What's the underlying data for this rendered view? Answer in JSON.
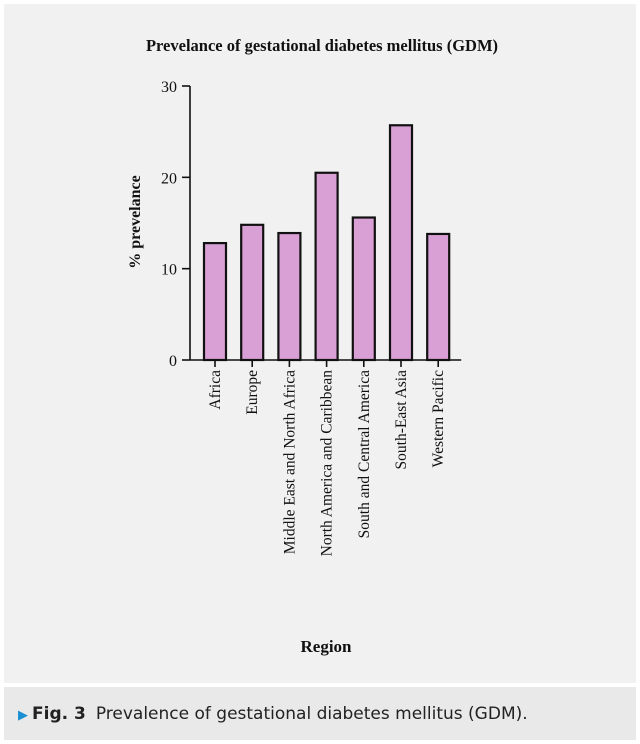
{
  "chart_data": {
    "type": "bar",
    "title": "Prevelance of gestational diabetes mellitus (GDM)",
    "xlabel": "Region",
    "ylabel": "% prevelance",
    "categories": [
      "Africa",
      "Europe",
      "Middle East and North Africa",
      "North America and Caribbean",
      "South and Central America",
      "South-East Asia",
      "Western Pacific"
    ],
    "values": [
      12.8,
      14.8,
      13.9,
      20.5,
      15.6,
      25.7,
      13.8
    ],
    "ylim": [
      0,
      30
    ],
    "yticks": [
      0,
      10,
      20,
      30
    ],
    "bar_color": "#d9a0d6",
    "edge_color": "#111111",
    "grid": false
  },
  "caption": {
    "label": "Fig. 3",
    "text": "Prevalence of gestational diabetes mellitus (GDM)."
  }
}
